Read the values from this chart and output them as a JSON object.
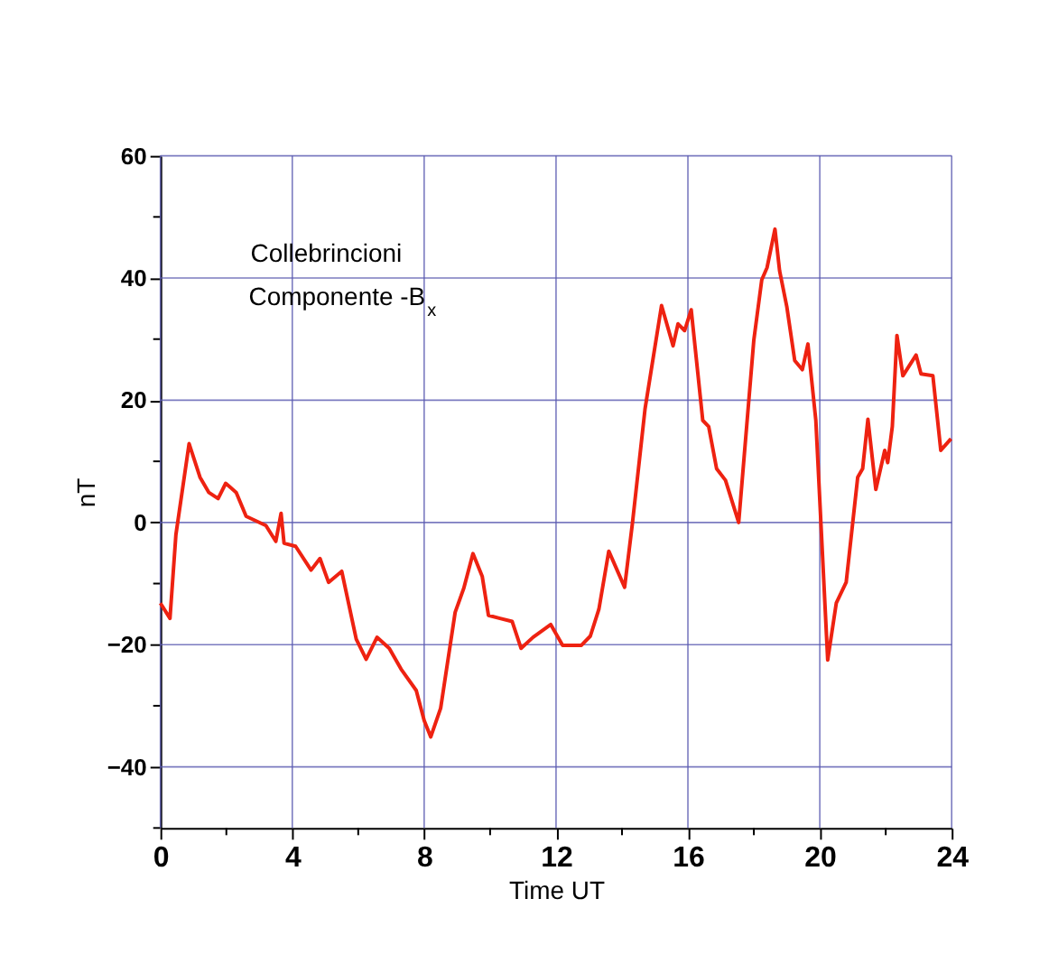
{
  "chart_data": {
    "type": "line",
    "xlabel": "Time UT",
    "ylabel": "nT",
    "annotations": [
      "Collebrincioni",
      "Componente -B$_{x}$"
    ],
    "xlim": [
      0,
      24
    ],
    "ylim": [
      -50,
      60
    ],
    "xticks": [
      0,
      {
        "value": 2,
        "label": null
      },
      4,
      {
        "value": 6,
        "label": null
      },
      8,
      {
        "value": 10,
        "label": null
      },
      12,
      {
        "value": 14,
        "label": null
      },
      16,
      {
        "value": 18,
        "label": null
      },
      20,
      {
        "value": 22,
        "label": null
      },
      24
    ],
    "yticks": [
      {
        "value": -50,
        "label": null
      },
      -40,
      {
        "value": -30,
        "label": null
      },
      -20,
      {
        "value": -10,
        "label": null
      },
      0,
      {
        "value": 10,
        "label": null
      },
      20,
      {
        "value": 30,
        "label": null
      },
      40,
      {
        "value": 50,
        "label": null
      },
      60
    ],
    "grid": true,
    "marker": "none",
    "line_style": "solid",
    "series": [
      {
        "color": "#ee2211",
        "x": [
          0,
          0.29,
          0.47,
          0.87,
          1.2,
          1.47,
          1.75,
          1.98,
          2.3,
          2.6,
          3.2,
          3.5,
          3.66,
          3.75,
          4.1,
          4.57,
          4.84,
          5.1,
          5.5,
          5.94,
          6.24,
          6.57,
          6.94,
          7.3,
          7.76,
          8.0,
          8.2,
          8.5,
          8.94,
          9.2,
          9.48,
          9.76,
          9.95,
          10.3,
          10.67,
          10.94,
          11.3,
          11.84,
          12.2,
          12.77,
          13.04,
          13.3,
          13.6,
          14.08,
          14.32,
          14.7,
          14.96,
          15.2,
          15.55,
          15.7,
          15.9,
          16.1,
          16.45,
          16.63,
          16.87,
          17.14,
          17.54,
          18.0,
          18.24,
          18.4,
          18.64,
          18.78,
          19.0,
          19.24,
          19.47,
          19.64,
          19.88,
          20.24,
          20.5,
          20.8,
          21.15,
          21.3,
          21.46,
          21.7,
          21.97,
          22.06,
          22.2,
          22.34,
          22.52,
          22.92,
          23.07,
          23.43,
          23.67,
          23.98
        ],
        "values": [
          -13.2,
          -15.7,
          -2,
          12.9,
          7.4,
          4.9,
          3.9,
          6.4,
          4.9,
          1,
          -0.5,
          -3.1,
          1.5,
          -3.4,
          -3.9,
          -7.8,
          -5.9,
          -9.8,
          -8,
          -19.1,
          -22.4,
          -18.8,
          -20.6,
          -24,
          -27.5,
          -32.4,
          -35.1,
          -30.4,
          -14.7,
          -10.8,
          -5.1,
          -8.8,
          -15.2,
          -15.7,
          -16.2,
          -20.6,
          -18.8,
          -16.7,
          -20.1,
          -20.1,
          -18.6,
          -14.2,
          -4.7,
          -10.6,
          0,
          18.6,
          27.4,
          35.5,
          28.9,
          32.5,
          31.4,
          34.8,
          16.7,
          15.7,
          8.8,
          6.9,
          0,
          29.9,
          39.7,
          41.7,
          48,
          41.2,
          35.3,
          26.5,
          25,
          29.2,
          16.7,
          -22.5,
          -13.2,
          -9.8,
          7.4,
          8.8,
          16.9,
          5.4,
          11.8,
          9.8,
          15.7,
          30.6,
          24,
          27.4,
          24.3,
          24,
          11.8,
          13.7
        ]
      }
    ]
  }
}
